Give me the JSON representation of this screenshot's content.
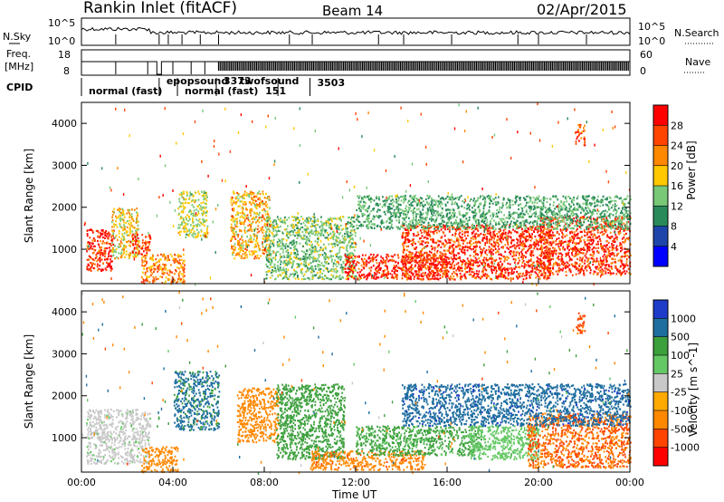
{
  "header": {
    "station": "Rankin Inlet (fitACF)",
    "beam": "Beam 14",
    "date": "02/Apr/2015"
  },
  "noise_panel": {
    "left_label": "N.Sky",
    "left_ticks": [
      "10^5",
      "10^0"
    ],
    "right_label": "N.Search",
    "right_ticks": [
      "10^5",
      "10^0"
    ]
  },
  "freq_panel": {
    "left_label_1": "Freq.",
    "left_label_2": "[MHz]",
    "left_ticks": [
      "18",
      "8"
    ],
    "right_label": "Nave",
    "right_ticks": [
      "60",
      "0"
    ]
  },
  "cpid": {
    "label": "CPID",
    "modes": [
      {
        "text": "normal (fast)",
        "t": 0.0
      },
      {
        "text": "epopsound",
        "t": 3.4
      },
      {
        "text": "normal (fast)",
        "t": 4.2
      },
      {
        "text": "151",
        "t": 8.6
      },
      {
        "text": "3373",
        "t": 5.9
      },
      {
        "text": "twofsound",
        "t": 5.9
      },
      {
        "text": "3503",
        "t": 10.0
      }
    ]
  },
  "power_colorbar": {
    "title": "Power [dB]",
    "ticks": [
      "28",
      "24",
      "20",
      "16",
      "12",
      "8",
      "4"
    ],
    "colors": [
      "#ff0000",
      "#ff4400",
      "#ff8800",
      "#ffc800",
      "#78c878",
      "#2a8a5a",
      "#1e46aa",
      "#0000ff"
    ]
  },
  "velocity_colorbar": {
    "title": "Velocity [m s^-1]",
    "ticks": [
      "1000",
      "500",
      "100",
      "25",
      "-25",
      "-100",
      "-500",
      "-1000"
    ],
    "colors": [
      "#1e3cc8",
      "#1e6ea0",
      "#3ca03c",
      "#64c864",
      "#c8c8c8",
      "#ffaa00",
      "#ff8800",
      "#ff4400",
      "#ff0000"
    ]
  },
  "chart_data": [
    {
      "type": "heatmap",
      "title": "",
      "xlabel": "Time UT",
      "ylabel": "Slant Range [km]",
      "xlim": [
        0,
        24
      ],
      "ylim": [
        180,
        4500
      ],
      "x_ticks": [
        "00:00",
        "04:00",
        "08:00",
        "12:00",
        "16:00",
        "20:00",
        "00:00"
      ],
      "y_ticks": [
        1000,
        2000,
        3000,
        4000
      ],
      "colorbar": "Power [dB]",
      "regions": [
        {
          "t0": 0.2,
          "t1": 1.4,
          "r0": 500,
          "r1": 1500,
          "value": 28
        },
        {
          "t0": 1.3,
          "t1": 2.5,
          "r0": 800,
          "r1": 2000,
          "value": 16
        },
        {
          "t0": 2.2,
          "t1": 3.0,
          "r0": 900,
          "r1": 1400,
          "value": 26
        },
        {
          "t0": 2.6,
          "t1": 4.5,
          "r0": 200,
          "r1": 900,
          "value": 20
        },
        {
          "t0": 4.2,
          "t1": 5.5,
          "r0": 1300,
          "r1": 2400,
          "value": 14
        },
        {
          "t0": 6.5,
          "t1": 8.2,
          "r0": 800,
          "r1": 2400,
          "value": 18
        },
        {
          "t0": 8.0,
          "t1": 12.0,
          "r0": 300,
          "r1": 1800,
          "value": 12
        },
        {
          "t0": 11.5,
          "t1": 16.0,
          "r0": 300,
          "r1": 900,
          "value": 28
        },
        {
          "t0": 14.0,
          "t1": 20.5,
          "r0": 300,
          "r1": 1600,
          "value": 26
        },
        {
          "t0": 20.0,
          "t1": 24.0,
          "r0": 400,
          "r1": 1800,
          "value": 26
        },
        {
          "t0": 12.0,
          "t1": 24.0,
          "r0": 1500,
          "r1": 2300,
          "value": 10
        },
        {
          "t0": 21.6,
          "t1": 22.0,
          "r0": 3500,
          "r1": 4000,
          "value": 24
        }
      ]
    },
    {
      "type": "heatmap",
      "title": "",
      "xlabel": "Time UT",
      "ylabel": "Slant Range [km]",
      "xlim": [
        0,
        24
      ],
      "ylim": [
        180,
        4500
      ],
      "x_ticks": [
        "00:00",
        "04:00",
        "08:00",
        "12:00",
        "16:00",
        "20:00",
        "00:00"
      ],
      "y_ticks": [
        1000,
        2000,
        3000,
        4000
      ],
      "colorbar": "Velocity [m s^-1]",
      "regions": [
        {
          "t0": 0.2,
          "t1": 3.0,
          "r0": 400,
          "r1": 1700,
          "value": 20
        },
        {
          "t0": 2.6,
          "t1": 4.2,
          "r0": 200,
          "r1": 800,
          "value": -200
        },
        {
          "t0": 4.0,
          "t1": 6.0,
          "r0": 1200,
          "r1": 2600,
          "value": 600
        },
        {
          "t0": 6.8,
          "t1": 8.6,
          "r0": 900,
          "r1": 2200,
          "value": -300
        },
        {
          "t0": 8.5,
          "t1": 11.5,
          "r0": 500,
          "r1": 2300,
          "value": 300
        },
        {
          "t0": 10.0,
          "t1": 15.0,
          "r0": 250,
          "r1": 700,
          "value": -400
        },
        {
          "t0": 12.0,
          "t1": 17.5,
          "r0": 600,
          "r1": 1300,
          "value": 120
        },
        {
          "t0": 17.0,
          "t1": 20.0,
          "r0": 500,
          "r1": 1300,
          "value": 40
        },
        {
          "t0": 19.5,
          "t1": 24.0,
          "r0": 300,
          "r1": 1600,
          "value": -500
        },
        {
          "t0": 14.0,
          "t1": 24.0,
          "r0": 1300,
          "r1": 2300,
          "value": 800
        },
        {
          "t0": 21.6,
          "t1": 22.0,
          "r0": 3500,
          "r1": 4000,
          "value": -600
        }
      ]
    }
  ]
}
